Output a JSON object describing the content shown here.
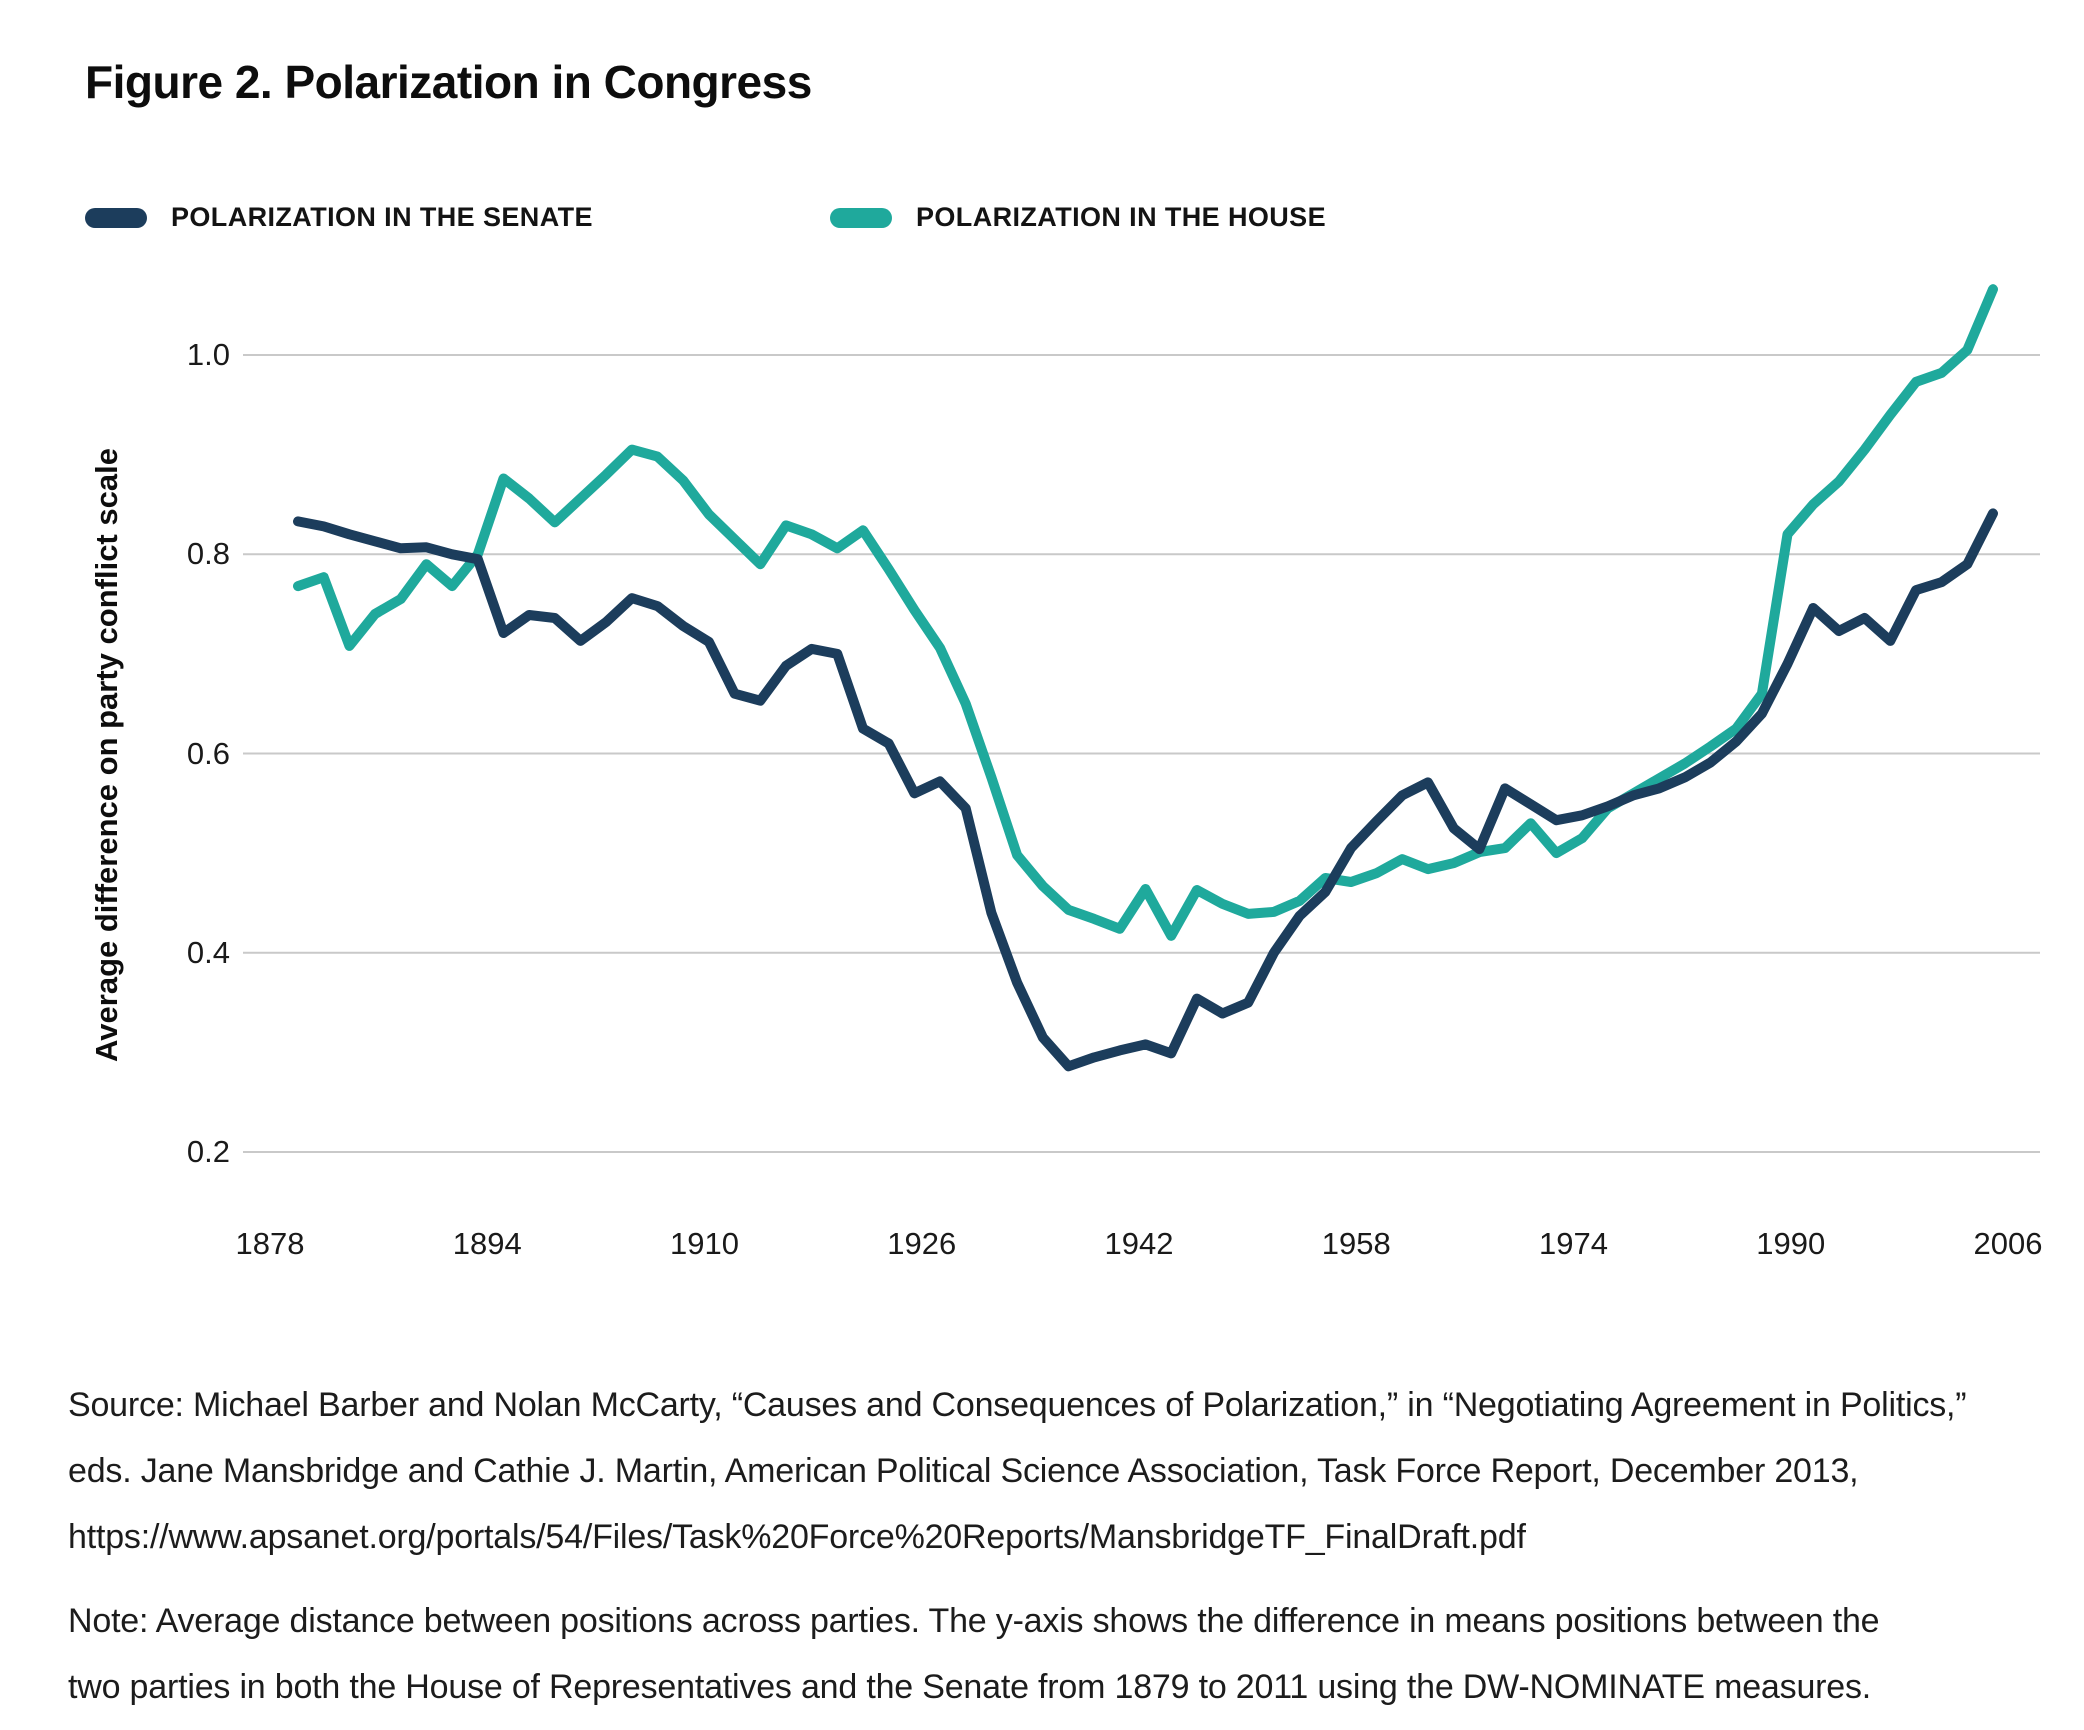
{
  "title": "Figure 2. Polarization in Congress",
  "legend": {
    "senate": {
      "label": "POLARIZATION IN THE SENATE",
      "color": "#1C3D5C"
    },
    "house": {
      "label": "POLARIZATION IN THE HOUSE",
      "color": "#1FA99C"
    }
  },
  "y_axis": {
    "title": "Average difference on party conflict scale",
    "tick_labels": [
      "1.0",
      "0.8",
      "0.6",
      "0.4",
      "0.2"
    ]
  },
  "x_axis": {
    "tick_labels": [
      "1878",
      "1894",
      "1910",
      "1926",
      "1942",
      "1958",
      "1974",
      "1990",
      "2006"
    ]
  },
  "colors": {
    "senate_line": "#1C3D5C",
    "house_line": "#1FA99C",
    "gridline": "#C9C9C9",
    "text": "#131313"
  },
  "source": {
    "text": "Source: Michael Barber and Nolan McCarty, “Causes and Consequences of Polarization,” in “Negotiating Agreement in Politics,”\neds. Jane Mansbridge and Cathie J. Martin, American Political Science Association, Task Force Report, December 2013,\nhttps://www.apsanet.org/portals/54/Files/Task%20Force%20Reports/MansbridgeTF_FinalDraft.pdf"
  },
  "note": {
    "text": "Note: Average distance between positions across parties. The y-axis shows the difference in means positions between the\ntwo parties in both the House of Representatives and the Senate from 1879 to 2011 using the DW-NOMINATE measures."
  },
  "chart_data": {
    "type": "line",
    "title": "Figure 2. Polarization in Congress",
    "xlabel": "",
    "ylabel": "Average difference on party conflict scale",
    "x": [
      1879,
      1881,
      1883,
      1885,
      1887,
      1889,
      1891,
      1893,
      1895,
      1897,
      1899,
      1901,
      1903,
      1905,
      1907,
      1909,
      1911,
      1913,
      1915,
      1917,
      1919,
      1921,
      1923,
      1925,
      1927,
      1929,
      1931,
      1933,
      1935,
      1937,
      1939,
      1941,
      1943,
      1945,
      1947,
      1949,
      1951,
      1953,
      1955,
      1957,
      1959,
      1961,
      1963,
      1965,
      1967,
      1969,
      1971,
      1973,
      1975,
      1977,
      1979,
      1981,
      1983,
      1985,
      1987,
      1989,
      1991,
      1993,
      1995,
      1997,
      1999,
      2001,
      2003,
      2005,
      2007,
      2009,
      2011
    ],
    "series": [
      {
        "name": "Polarization in the Senate",
        "color": "#1C3D5C",
        "values": [
          0.833,
          0.828,
          0.82,
          0.813,
          0.806,
          0.807,
          0.8,
          0.795,
          0.721,
          0.739,
          0.736,
          0.713,
          0.732,
          0.756,
          0.748,
          0.728,
          0.712,
          0.66,
          0.653,
          0.688,
          0.705,
          0.7,
          0.625,
          0.61,
          0.56,
          0.572,
          0.545,
          0.44,
          0.37,
          0.315,
          0.286,
          0.295,
          0.302,
          0.308,
          0.299,
          0.354,
          0.339,
          0.35,
          0.4,
          0.437,
          0.461,
          0.505,
          0.532,
          0.558,
          0.571,
          0.525,
          0.504,
          0.565,
          0.549,
          0.533,
          0.538,
          0.547,
          0.558,
          0.565,
          0.576,
          0.591,
          0.612,
          0.64,
          0.69,
          0.746,
          0.723,
          0.736,
          0.713,
          0.764,
          0.772,
          0.79,
          0.841
        ]
      },
      {
        "name": "Polarization in the House",
        "color": "#1FA99C",
        "values": [
          0.768,
          0.777,
          0.708,
          0.74,
          0.755,
          0.79,
          0.768,
          0.8,
          0.876,
          0.856,
          0.832,
          0.856,
          0.88,
          0.905,
          0.898,
          0.874,
          0.84,
          0.815,
          0.79,
          0.829,
          0.82,
          0.806,
          0.824,
          0.785,
          0.744,
          0.706,
          0.65,
          0.576,
          0.498,
          0.467,
          0.443,
          0.434,
          0.424,
          0.464,
          0.417,
          0.463,
          0.449,
          0.439,
          0.441,
          0.452,
          0.475,
          0.471,
          0.48,
          0.494,
          0.484,
          0.49,
          0.501,
          0.505,
          0.53,
          0.5,
          0.515,
          0.545,
          0.56,
          0.575,
          0.59,
          0.607,
          0.625,
          0.66,
          0.82,
          0.85,
          0.873,
          0.905,
          0.94,
          0.973,
          0.982,
          1.005,
          1.066
        ]
      }
    ],
    "y_ticks": [
      1.0,
      0.8,
      0.6,
      0.4,
      0.2
    ],
    "x_ticks": [
      1878,
      1894,
      1910,
      1926,
      1942,
      1958,
      1974,
      1990,
      2006
    ],
    "ylim": [
      0.2,
      1.1
    ],
    "xlim": [
      1878,
      2006
    ],
    "grid": true,
    "legend_position": "top-left"
  }
}
